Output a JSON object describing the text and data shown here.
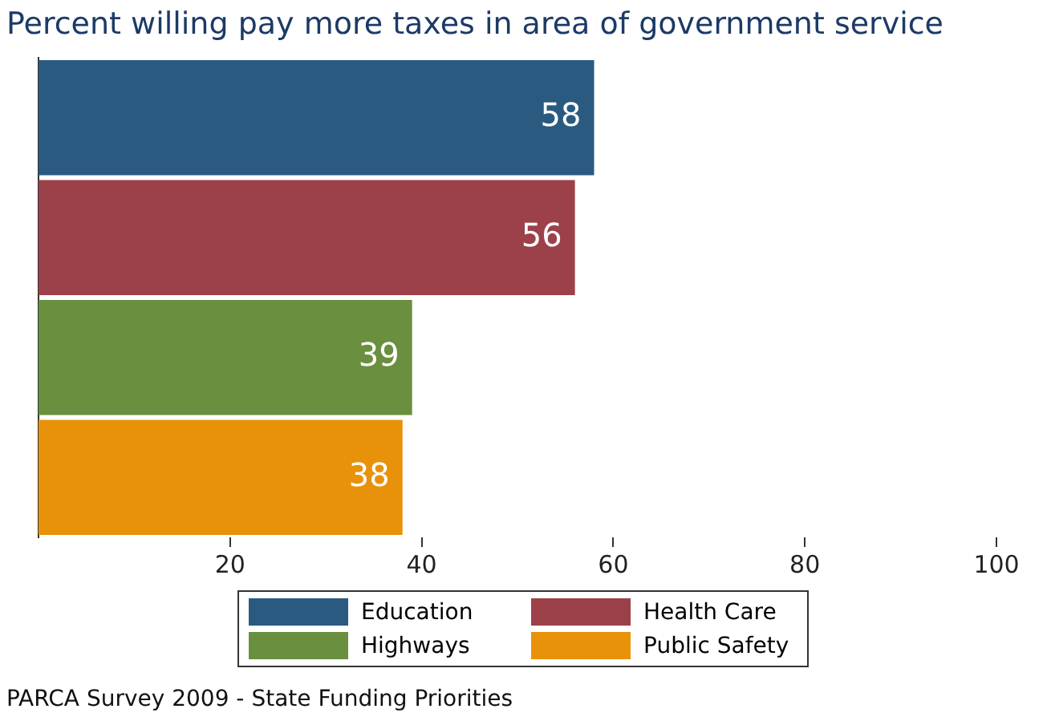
{
  "chart_data": {
    "type": "bar",
    "orientation": "horizontal",
    "title": "Percent willing pay more taxes in area of government service",
    "categories": [
      null,
      null,
      null,
      null
    ],
    "series": [
      {
        "name": "Education",
        "color": "#2a5a80",
        "values": [
          58,
          null,
          null,
          null
        ]
      },
      {
        "name": "Health Care",
        "color": "#9c4049",
        "values": [
          null,
          56,
          null,
          null
        ]
      },
      {
        "name": "Highways",
        "color": "#6a8f3e",
        "values": [
          null,
          null,
          39,
          null
        ]
      },
      {
        "name": "Public Safety",
        "color": "#e8920a",
        "values": [
          null,
          null,
          null,
          38
        ]
      }
    ],
    "xlim": [
      0,
      100
    ],
    "xticks": [
      20,
      40,
      60,
      80,
      100
    ],
    "grid": false,
    "legend": "bottom",
    "data_labels": true,
    "annotations": [
      "PARCA Survey 2009 - State Funding Priorities"
    ]
  }
}
